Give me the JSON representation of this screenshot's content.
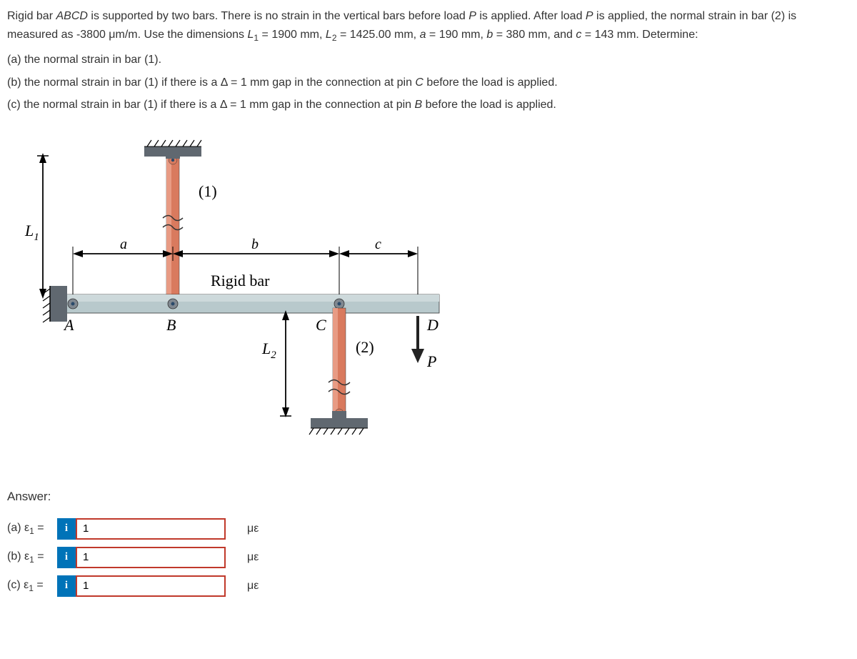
{
  "problem": {
    "intro_html": "Rigid bar <i>ABCD</i> is supported by two bars. There is no strain in the vertical bars before load <i>P</i> is applied. After load <i>P</i> is applied, the normal strain in bar (2) is measured as -3800 μm/m. Use the dimensions <i>L</i><span class='sub'>1</span> = 1900 mm, <i>L</i><span class='sub'>2</span> = 1425.00 mm, <i>a</i> = 190 mm, <i>b</i> = 380 mm, and <i>c</i> = 143 mm. Determine:",
    "part_a": "(a) the normal strain in bar (1).",
    "part_b": "(b) the normal strain in bar (1) if there is a Δ = 1 mm gap in the connection at pin <i>C</i> before the load is applied.",
    "part_c": "(c) the normal strain in bar (1) if there is a Δ = 1 mm gap in the connection at pin <i>B</i> before the load is applied."
  },
  "diagram": {
    "labels": {
      "L1": "L",
      "L1_sub": "1",
      "L2": "L",
      "L2_sub": "2",
      "a": "a",
      "b": "b",
      "c": "c",
      "A": "A",
      "B": "B",
      "C": "C",
      "D": "D",
      "P": "P",
      "bar1": "(1)",
      "bar2": "(2)",
      "rigid": "Rigid bar"
    },
    "colors": {
      "bar_body": "#d97a5e",
      "bar_body_light": "#e89b84",
      "rigid_bar": "#b8c9cc",
      "rigid_bar_dark": "#95a8ab",
      "support": "#606870",
      "pin": "#6a7278",
      "arrow": "#232323",
      "text": "#000000"
    }
  },
  "answer": {
    "label": "Answer:",
    "rows": [
      {
        "prefix": "(a) ε",
        "sub": "1",
        "eq": " =",
        "value": "1",
        "unit": "με"
      },
      {
        "prefix": "(b) ε",
        "sub": "1",
        "eq": " =",
        "value": "1",
        "unit": "με"
      },
      {
        "prefix": "(c) ε",
        "sub": "1",
        "eq": " =",
        "value": "1",
        "unit": "με"
      }
    ]
  }
}
